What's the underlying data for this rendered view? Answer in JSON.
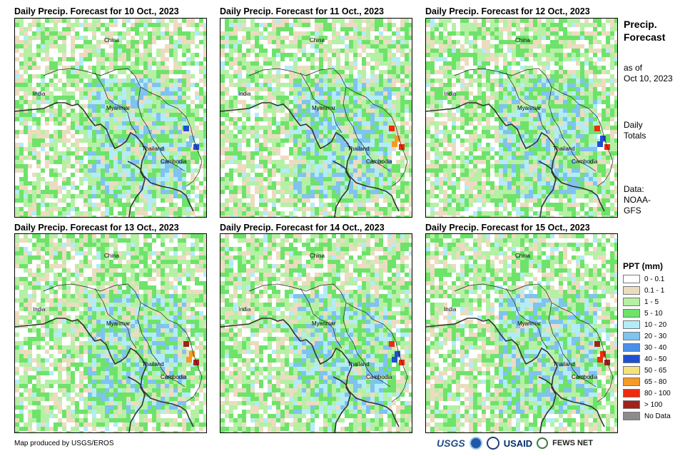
{
  "panels": [
    {
      "title": "Daily Precip. Forecast for 10 Oct., 2023",
      "hotspots": [
        "mm40_50",
        "mm20_30"
      ]
    },
    {
      "title": "Daily Precip. Forecast for 11 Oct., 2023",
      "hotspots": [
        "mm80_100",
        "mm65_80"
      ]
    },
    {
      "title": "Daily Precip. Forecast for 12 Oct., 2023",
      "hotspots": [
        "mm80_100",
        "mm40_50"
      ]
    },
    {
      "title": "Daily Precip. Forecast for 13 Oct., 2023",
      "hotspots": [
        "gt100",
        "mm65_80"
      ]
    },
    {
      "title": "Daily Precip. Forecast for 14 Oct., 2023",
      "hotspots": [
        "mm80_100",
        "mm40_50"
      ]
    },
    {
      "title": "Daily Precip. Forecast for 15 Oct., 2023",
      "hotspots": [
        "gt100",
        "mm80_100"
      ]
    }
  ],
  "map_labels": {
    "china": "China",
    "india": "India",
    "myanmar": "Myanmar",
    "thailand": "Thailand",
    "cambodia": "Cambodia"
  },
  "sidebar": {
    "title_line1": "Precip.",
    "title_line2": "Forecast",
    "asof_line1": "as of",
    "asof_line2": "Oct 10, 2023",
    "totals_line1": "Daily",
    "totals_line2": "Totals",
    "data_line1": "Data:",
    "data_line2": "NOAA-",
    "data_line3": "GFS"
  },
  "legend": {
    "title": "PPT (mm)",
    "items": [
      {
        "label": "0 - 0.1",
        "color": "#ffffff"
      },
      {
        "label": "0.1 - 1",
        "color": "#ecdcbf"
      },
      {
        "label": "1 - 5",
        "color": "#b5f0a5"
      },
      {
        "label": "5 - 10",
        "color": "#6ee36a"
      },
      {
        "label": "10 - 20",
        "color": "#b3ecf8"
      },
      {
        "label": "20 - 30",
        "color": "#7fc3ee"
      },
      {
        "label": "30 - 40",
        "color": "#4a90e8"
      },
      {
        "label": "40 - 50",
        "color": "#1f4fd1"
      },
      {
        "label": "50 - 65",
        "color": "#f6e27a"
      },
      {
        "label": "65 - 80",
        "color": "#f59a23"
      },
      {
        "label": "80 - 100",
        "color": "#f02a0c"
      },
      {
        "label": "> 100",
        "color": "#a3211a"
      },
      {
        "label": "No Data",
        "color": "#8c8c8c"
      }
    ]
  },
  "footer": {
    "credit": "Map produced by USGS/EROS"
  },
  "logos": {
    "usgs": "USGS",
    "usaid": "USAID",
    "fews": "FEWS NET"
  }
}
